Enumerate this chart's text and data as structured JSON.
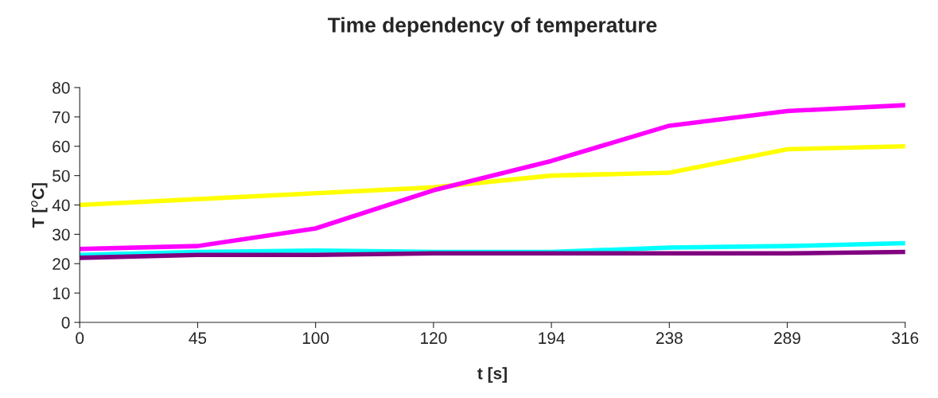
{
  "chart_data": {
    "type": "line",
    "title": "Time dependency of temperature",
    "xlabel": "t [s]",
    "ylabel": "T [$^{o}$C]",
    "categories": [
      "0",
      "45",
      "100",
      "120",
      "194",
      "238",
      "289",
      "316"
    ],
    "series": [
      {
        "color": "#ffff00",
        "values": [
          40,
          42,
          44,
          46,
          50,
          51,
          59,
          60
        ]
      },
      {
        "color": "#ff00ff",
        "values": [
          25,
          26,
          32,
          45,
          55,
          67,
          72,
          74
        ]
      },
      {
        "color": "#00ffff",
        "values": [
          23,
          24,
          24.5,
          24,
          24,
          25.5,
          26,
          27
        ]
      },
      {
        "color": "#800080",
        "values": [
          22,
          23,
          23,
          23.5,
          23.5,
          23.5,
          23.5,
          24
        ]
      }
    ],
    "ylim": [
      0,
      80
    ],
    "yticks": [
      0,
      10,
      20,
      30,
      40,
      50,
      60,
      70,
      80
    ],
    "grid": false,
    "marker": "none",
    "line_style": "solid"
  }
}
